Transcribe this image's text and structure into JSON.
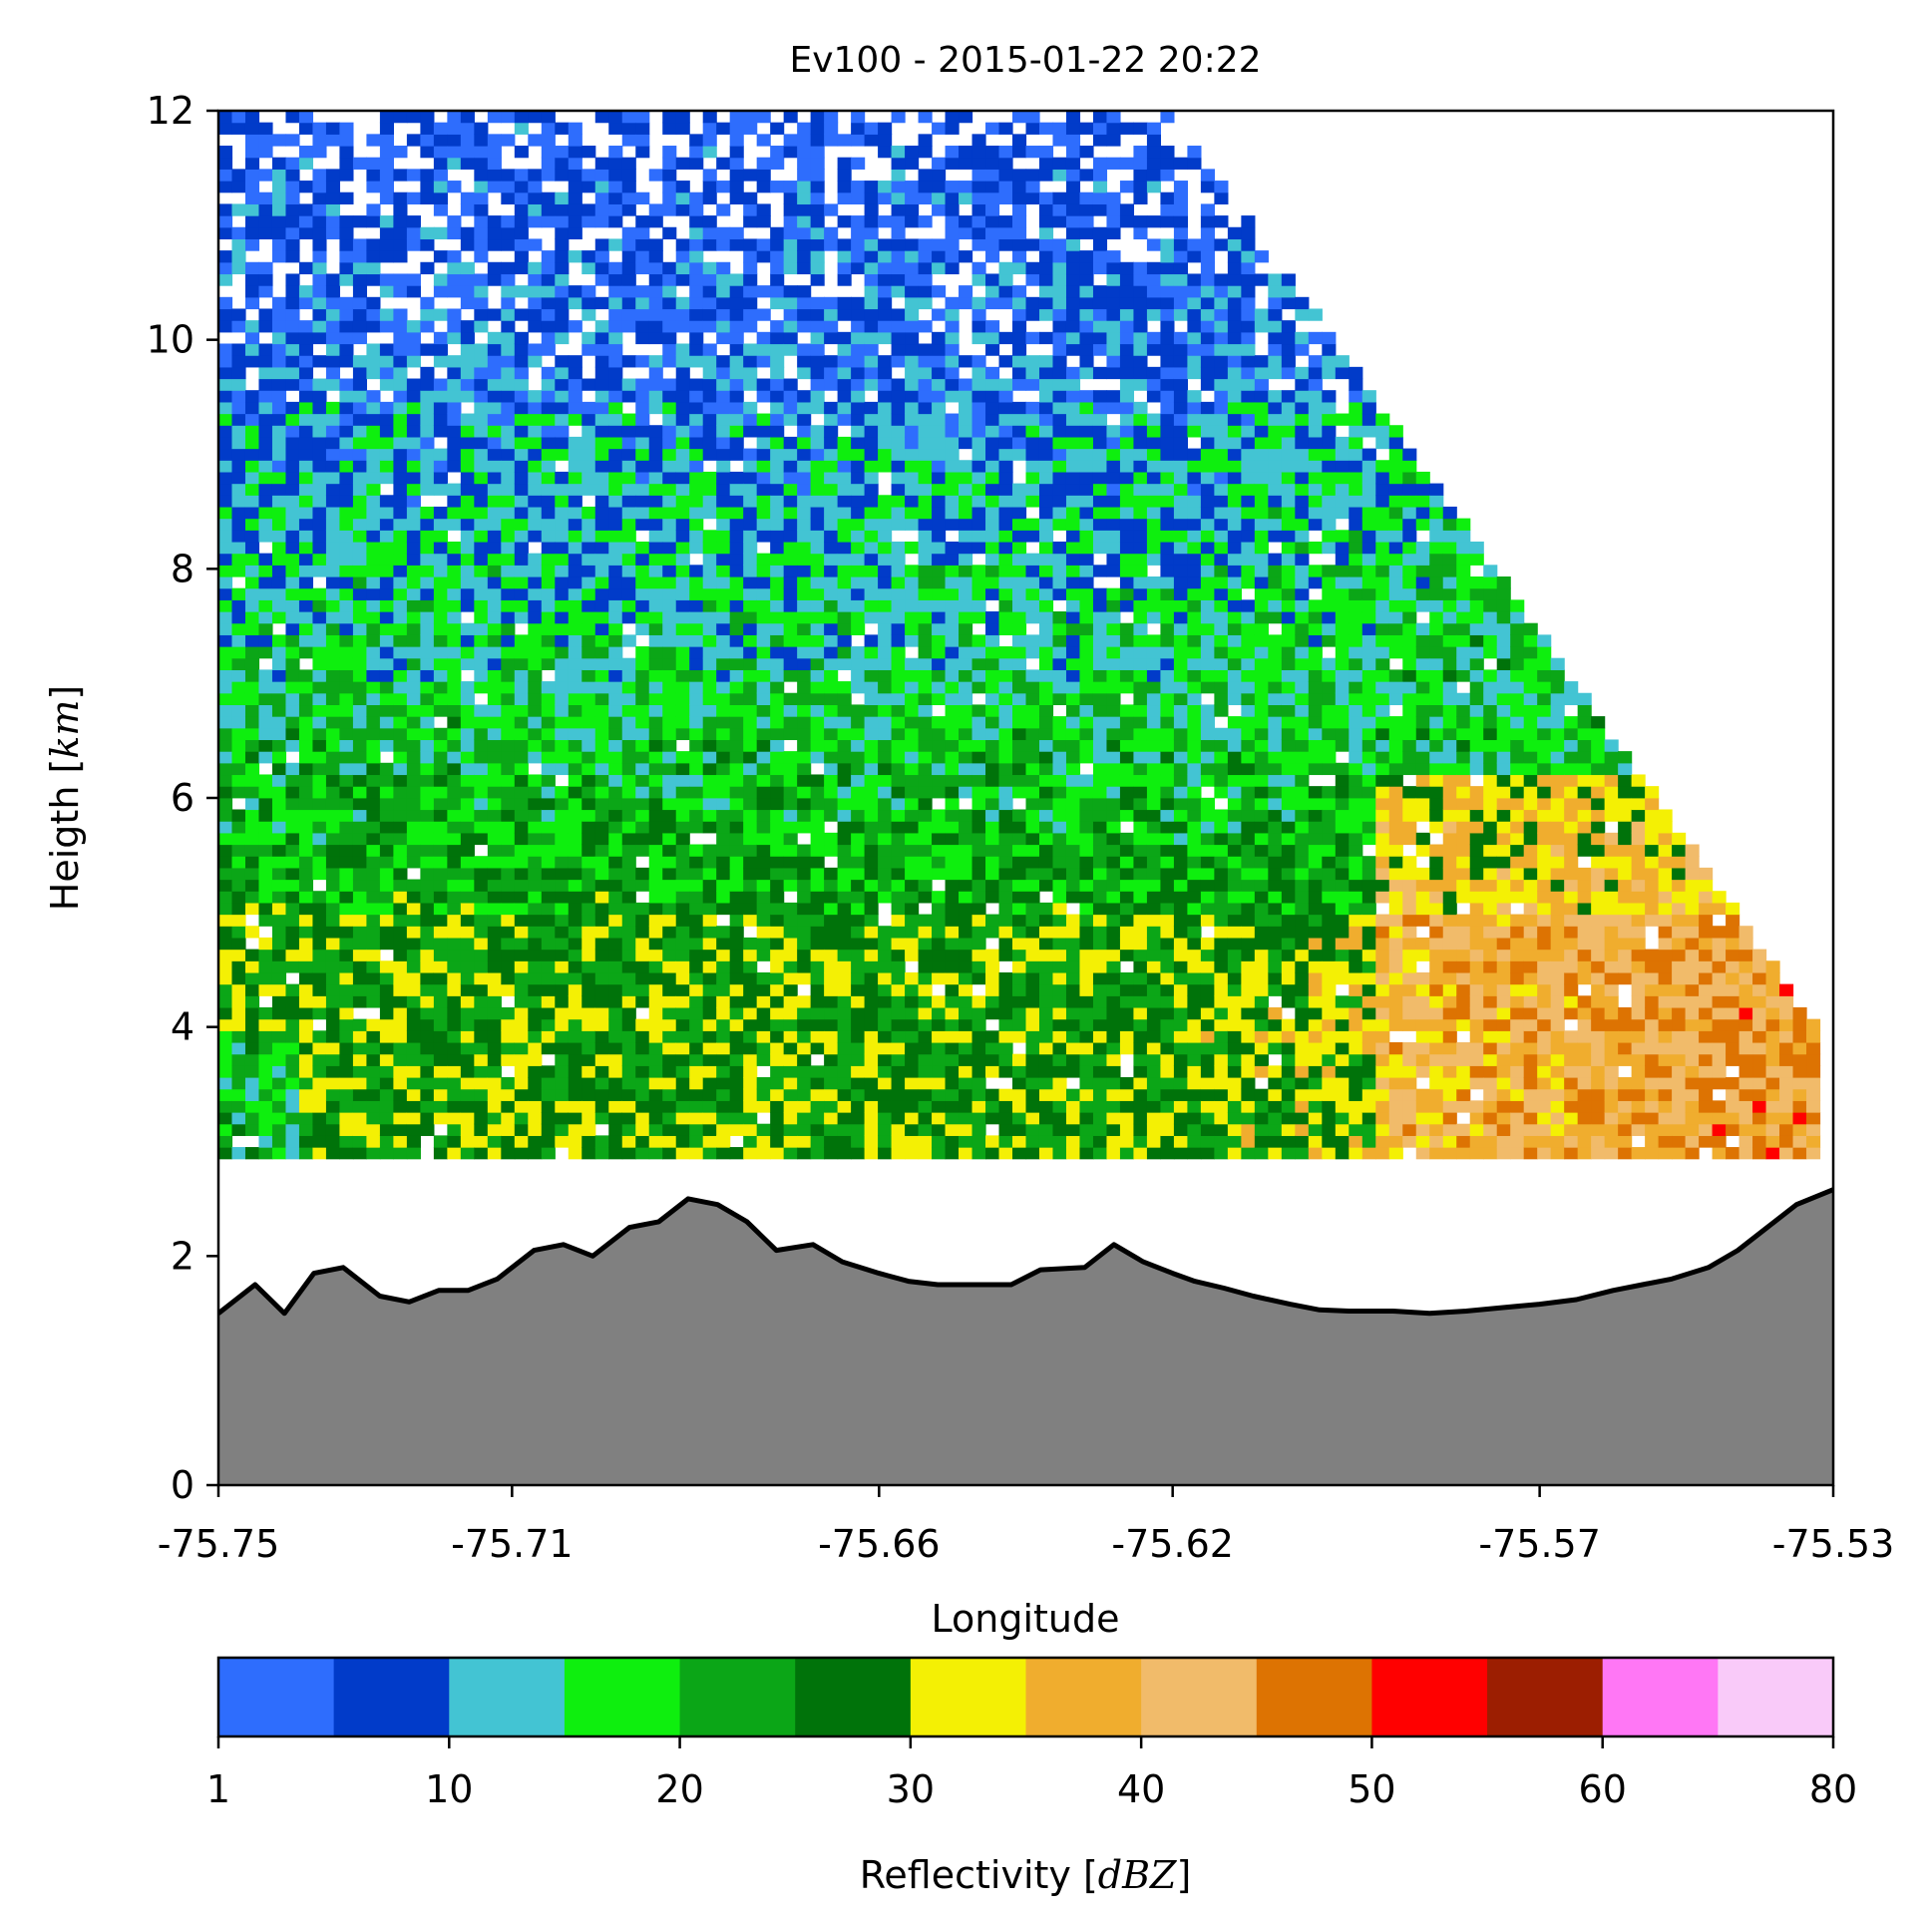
{
  "chart_data": {
    "type": "heatmap",
    "title": "Ev100 - 2015-01-22 20:22",
    "xlabel": "Longitude",
    "ylabel": "Heigth [km]",
    "xlim": [
      -75.75,
      -75.53
    ],
    "ylim": [
      0,
      12
    ],
    "xticks": [
      -75.75,
      -75.71,
      -75.66,
      -75.62,
      -75.57,
      -75.53
    ],
    "xtick_labels": [
      "-75.75",
      "-75.71",
      "-75.66",
      "-75.62",
      "-75.57",
      "-75.53"
    ],
    "yticks": [
      0,
      2,
      4,
      6,
      8,
      10,
      12
    ],
    "ytick_labels": [
      "0",
      "2",
      "4",
      "6",
      "8",
      "10",
      "12"
    ],
    "grid": false,
    "terrain": {
      "fill_color": "#808080",
      "line_color": "#000000",
      "lon": [
        -75.75,
        -75.745,
        -75.741,
        -75.737,
        -75.733,
        -75.728,
        -75.724,
        -75.72,
        -75.716,
        -75.712,
        -75.707,
        -75.703,
        -75.699,
        -75.694,
        -75.69,
        -75.686,
        -75.682,
        -75.678,
        -75.674,
        -75.669,
        -75.665,
        -75.66,
        -75.656,
        -75.652,
        -75.646,
        -75.642,
        -75.638,
        -75.632,
        -75.628,
        -75.624,
        -75.62,
        -75.617,
        -75.613,
        -75.609,
        -75.604,
        -75.6,
        -75.596,
        -75.59,
        -75.585,
        -75.58,
        -75.575,
        -75.57,
        -75.565,
        -75.56,
        -75.556,
        -75.552,
        -75.547,
        -75.543,
        -75.539,
        -75.535,
        -75.53
      ],
      "height_km": [
        1.5,
        1.75,
        1.5,
        1.85,
        1.9,
        1.65,
        1.6,
        1.7,
        1.7,
        1.8,
        2.05,
        2.1,
        2.0,
        2.25,
        2.3,
        2.5,
        2.45,
        2.3,
        2.05,
        2.1,
        1.95,
        1.85,
        1.78,
        1.75,
        1.75,
        1.75,
        1.88,
        1.9,
        2.1,
        1.95,
        1.85,
        1.78,
        1.72,
        1.65,
        1.58,
        1.53,
        1.52,
        1.52,
        1.5,
        1.52,
        1.55,
        1.58,
        1.62,
        1.7,
        1.75,
        1.8,
        1.9,
        2.05,
        2.25,
        2.45,
        2.58
      ]
    },
    "reflectivity_field": {
      "lowest_height_km": 2.85,
      "top_height_km": 12,
      "echo_top_edge": {
        "lon": [
          -75.62,
          -75.53
        ],
        "height_km": [
          12,
          3.8
        ]
      },
      "layers": [
        {
          "height_km": [
            2.85,
            5.0
          ],
          "description_dbz": "25-40 with embedded 40-55 cores east of -75.59"
        },
        {
          "height_km": [
            5.0,
            7.0
          ],
          "description_dbz": "15-30"
        },
        {
          "height_km": [
            7.0,
            9.5
          ],
          "description_dbz": "10-20"
        },
        {
          "height_km": [
            9.5,
            12.0
          ],
          "description_dbz": "1-10"
        }
      ]
    },
    "colorbar": {
      "label": "Reflectivity [dBZ]",
      "tick_labels": [
        "1",
        "10",
        "20",
        "30",
        "40",
        "50",
        "60",
        "80"
      ],
      "bins": [
        {
          "from": 1,
          "to": 5,
          "color": "#2e6dfd"
        },
        {
          "from": 5,
          "to": 10,
          "color": "#013bc9"
        },
        {
          "from": 10,
          "to": 15,
          "color": "#43c4d3"
        },
        {
          "from": 15,
          "to": 20,
          "color": "#0eef0e"
        },
        {
          "from": 20,
          "to": 25,
          "color": "#0ba617"
        },
        {
          "from": 25,
          "to": 30,
          "color": "#00730a"
        },
        {
          "from": 30,
          "to": 35,
          "color": "#f4f004"
        },
        {
          "from": 35,
          "to": 40,
          "color": "#f0ad2e"
        },
        {
          "from": 40,
          "to": 45,
          "color": "#f1bb6a"
        },
        {
          "from": 45,
          "to": 50,
          "color": "#dd7302"
        },
        {
          "from": 50,
          "to": 55,
          "color": "#ff0000"
        },
        {
          "from": 55,
          "to": 60,
          "color": "#9c1e01"
        },
        {
          "from": 60,
          "to": 65,
          "color": "#ff77f5"
        },
        {
          "from": 65,
          "to": 80,
          "color": "#f9caf9"
        }
      ]
    }
  }
}
